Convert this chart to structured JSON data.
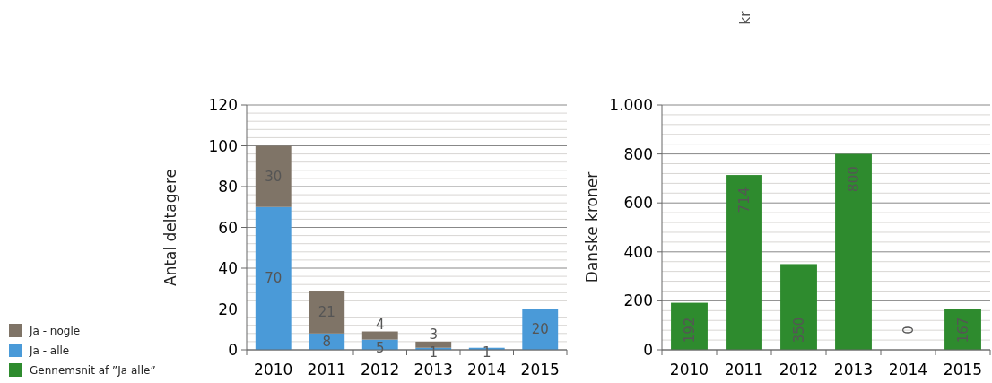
{
  "chart_data": [
    {
      "type": "bar",
      "stacked": true,
      "ylabel": "Antal deltagere",
      "categories": [
        "2010",
        "2011",
        "2012",
        "2013",
        "2014",
        "2015"
      ],
      "ylim": [
        0,
        120
      ],
      "yticks": [
        0,
        20,
        40,
        60,
        80,
        100,
        120
      ],
      "grid": "y",
      "legend": "bottom left",
      "data_labels": true,
      "series": [
        {
          "name": "Ja - alle",
          "color": "#4a9ad8",
          "values": [
            70,
            8,
            5,
            1,
            1,
            20
          ]
        },
        {
          "name": "Ja - nogle",
          "color": "#7f7467",
          "values": [
            30,
            21,
            4,
            3,
            null,
            null
          ]
        }
      ]
    },
    {
      "type": "bar",
      "title": "kr",
      "ylabel": "Danske kroner",
      "categories": [
        "2010",
        "2011",
        "2012",
        "2013",
        "2014",
        "2015"
      ],
      "ylim": [
        0,
        1000
      ],
      "yticks": [
        0,
        200,
        400,
        600,
        800,
        {
          "value": 1000,
          "label": "1.000"
        }
      ],
      "grid": "y",
      "legend": "bottom left",
      "data_labels": true,
      "series": [
        {
          "name": "Gennemsnit af ”Ja alle”",
          "color": "#2e8b2e",
          "values": [
            192,
            714,
            350,
            800,
            0,
            167
          ]
        }
      ]
    }
  ]
}
